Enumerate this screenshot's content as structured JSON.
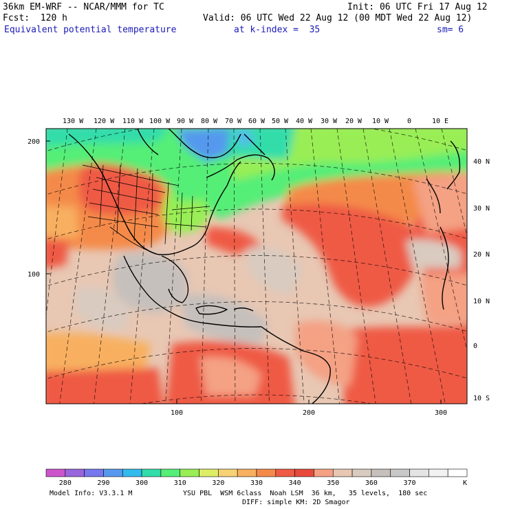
{
  "header": {
    "model_line": "36km EM-WRF -- NCAR/MMM for TC",
    "init_line": "Init: 06 UTC Fri 17 Aug 12",
    "fcst_line": "Fcst:  120 h",
    "valid_line": "Valid: 06 UTC Wed 22 Aug 12 (00 MDT Wed 22 Aug 12)",
    "field_name": "Equivalent potential temperature",
    "level_line": "at k-index =  35",
    "smoothing": "sm= 6"
  },
  "map": {
    "lon_labels": [
      "130 W",
      "120 W",
      "110 W",
      "100 W",
      "90 W",
      "80 W",
      "70 W",
      "60 W",
      "50 W",
      "40 W",
      "30 W",
      "20 W",
      "10 W",
      "0",
      "10 E"
    ],
    "lat_labels": [
      "40 N",
      "30 N",
      "20 N",
      "10 N",
      "0",
      "10 S"
    ],
    "y_grid_labels": [
      "200",
      "100"
    ],
    "x_grid_labels": [
      "100",
      "200",
      "300"
    ],
    "regions": {
      "colder_north": "green/teal, blue over Hudson Bay",
      "us_continent": "orange-red",
      "tropical_ocean": "tan and grey",
      "atlantic_band": "red"
    }
  },
  "colorbar": {
    "colors": [
      "#cc55cc",
      "#9966dd",
      "#7777ee",
      "#5599ee",
      "#33bbee",
      "#33ddaa",
      "#55ee77",
      "#99ee55",
      "#ddee66",
      "#f6d275",
      "#f8b060",
      "#f48a4a",
      "#ef5a45",
      "#e74a3c",
      "#f4a184",
      "#e8c7b3",
      "#d9cbc0",
      "#c6c0bc",
      "#c8c8c8",
      "#e4e4e4",
      "#f2f2f2",
      "#ffffff"
    ],
    "labels": [
      "280",
      "290",
      "300",
      "310",
      "320",
      "330",
      "340",
      "350",
      "360",
      "370",
      "K"
    ]
  },
  "footer": {
    "model_info": "Model Info: V3.3.1 M",
    "physics_line": "YSU PBL  WSM 6class  Noah LSM  36 km,   35 levels,  180 sec",
    "diffusion_line": "DIFF: simple KM: 2D Smagor"
  }
}
